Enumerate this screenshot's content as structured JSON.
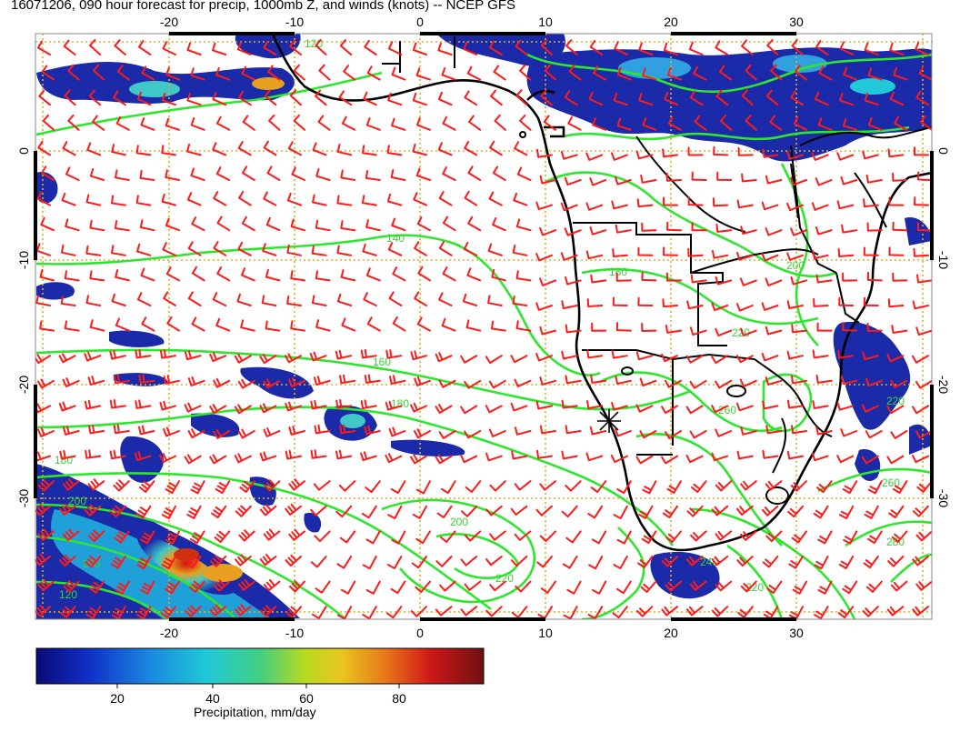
{
  "title": "16071206, 090 hour forecast for precip, 1000mb Z, and winds (knots) -- NCEP GFS",
  "map": {
    "lon_ticks": [
      -20,
      -10,
      0,
      10,
      20,
      30
    ],
    "lat_ticks": [
      0,
      -10,
      -20,
      -30
    ],
    "contour_labels": [
      "120",
      "140",
      "160",
      "180",
      "200",
      "220",
      "240",
      "260",
      "280"
    ],
    "colors": {
      "contour": "#2ee62e",
      "wind_barb": "#ff1a1a",
      "graticule": "#e0b020",
      "coastline": "#000000"
    }
  },
  "colorbar": {
    "ticks": [
      "20",
      "40",
      "60",
      "80"
    ],
    "label": "Precipitation, mm/day"
  }
}
